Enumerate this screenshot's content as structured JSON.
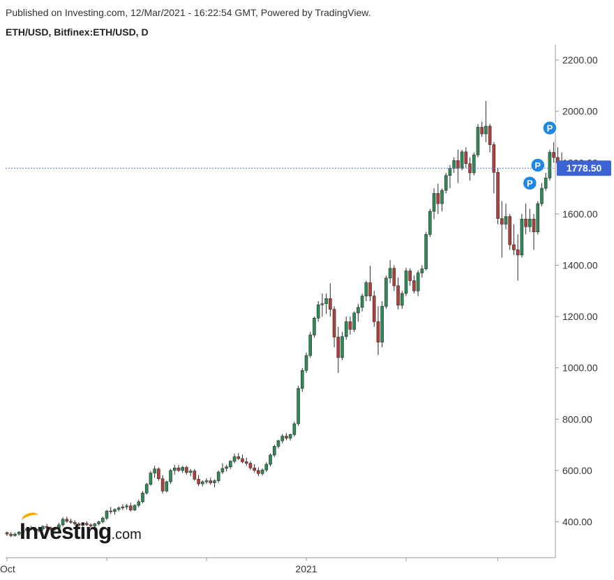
{
  "header": {
    "published": "Published on Investing.com, 12/Mar/2021 - 16:22:54 GMT, Powered by TradingView.",
    "symbol": "ETH/USD, Bitfinex:ETH/USD, D"
  },
  "logo": {
    "main": "Investing",
    "domain": ".com"
  },
  "colors": {
    "up": "#2e8b57",
    "down": "#b0403c",
    "price_line": "#5b74c9",
    "price_tag": "#3b63d6",
    "pattern_marker": "#1e88e5",
    "axis": "#999999"
  },
  "chart_data": {
    "type": "candlestick",
    "title": "ETH/USD, Bitfinex:ETH/USD, D",
    "ylim": [
      260,
      2260
    ],
    "y_ticks": [
      "2200.00",
      "2000.00",
      "1800.00",
      "1600.00",
      "1400.00",
      "1200.00",
      "1000.00",
      "800.00",
      "600.00",
      "400.00"
    ],
    "x_labels": [
      {
        "label": "Oct",
        "index": 0
      },
      {
        "label": "2021",
        "index": 75
      }
    ],
    "x_gridmarks": [
      0,
      25,
      50,
      75,
      100,
      123
    ],
    "last_price": "1778.50",
    "last_price_value": 1778.5,
    "pattern_markers": [
      {
        "label": "P",
        "index": 131,
        "value": 1720
      },
      {
        "label": "P",
        "index": 133,
        "value": 1790
      },
      {
        "label": "P",
        "index": 136,
        "value": 1935
      }
    ],
    "candles": [
      [
        358,
        362,
        345,
        352
      ],
      [
        352,
        360,
        340,
        346
      ],
      [
        346,
        358,
        342,
        352
      ],
      [
        352,
        364,
        346,
        360
      ],
      [
        360,
        372,
        352,
        366
      ],
      [
        366,
        380,
        360,
        374
      ],
      [
        374,
        384,
        366,
        370
      ],
      [
        370,
        378,
        358,
        366
      ],
      [
        366,
        376,
        360,
        372
      ],
      [
        372,
        386,
        366,
        382
      ],
      [
        382,
        392,
        372,
        376
      ],
      [
        376,
        382,
        362,
        370
      ],
      [
        370,
        380,
        364,
        376
      ],
      [
        376,
        396,
        370,
        388
      ],
      [
        388,
        418,
        382,
        410
      ],
      [
        410,
        420,
        396,
        402
      ],
      [
        402,
        412,
        392,
        398
      ],
      [
        398,
        406,
        386,
        392
      ],
      [
        392,
        398,
        380,
        386
      ],
      [
        386,
        398,
        380,
        394
      ],
      [
        394,
        402,
        384,
        388
      ],
      [
        388,
        394,
        376,
        384
      ],
      [
        384,
        396,
        378,
        392
      ],
      [
        392,
        404,
        386,
        400
      ],
      [
        400,
        420,
        394,
        414
      ],
      [
        414,
        446,
        406,
        442
      ],
      [
        442,
        458,
        430,
        440
      ],
      [
        440,
        452,
        428,
        448
      ],
      [
        448,
        460,
        440,
        454
      ],
      [
        454,
        468,
        446,
        458
      ],
      [
        458,
        470,
        448,
        462
      ],
      [
        462,
        474,
        440,
        446
      ],
      [
        446,
        468,
        442,
        464
      ],
      [
        464,
        486,
        456,
        478
      ],
      [
        478,
        520,
        472,
        512
      ],
      [
        512,
        552,
        506,
        546
      ],
      [
        546,
        598,
        540,
        590
      ],
      [
        590,
        618,
        572,
        606
      ],
      [
        606,
        612,
        560,
        568
      ],
      [
        568,
        582,
        510,
        520
      ],
      [
        520,
        560,
        514,
        556
      ],
      [
        556,
        606,
        548,
        600
      ],
      [
        600,
        622,
        584,
        610
      ],
      [
        610,
        622,
        594,
        600
      ],
      [
        600,
        618,
        590,
        612
      ],
      [
        612,
        618,
        584,
        592
      ],
      [
        592,
        606,
        578,
        598
      ],
      [
        598,
        606,
        560,
        566
      ],
      [
        566,
        582,
        540,
        548
      ],
      [
        548,
        562,
        538,
        556
      ],
      [
        556,
        570,
        548,
        560
      ],
      [
        560,
        572,
        544,
        552
      ],
      [
        552,
        566,
        534,
        560
      ],
      [
        560,
        600,
        552,
        594
      ],
      [
        594,
        628,
        586,
        608
      ],
      [
        608,
        622,
        596,
        614
      ],
      [
        614,
        640,
        606,
        636
      ],
      [
        636,
        666,
        628,
        654
      ],
      [
        654,
        668,
        640,
        646
      ],
      [
        646,
        662,
        628,
        634
      ],
      [
        634,
        650,
        618,
        628
      ],
      [
        628,
        636,
        602,
        610
      ],
      [
        610,
        624,
        592,
        600
      ],
      [
        600,
        612,
        578,
        588
      ],
      [
        588,
        608,
        580,
        602
      ],
      [
        602,
        632,
        594,
        624
      ],
      [
        624,
        666,
        616,
        660
      ],
      [
        660,
        700,
        652,
        694
      ],
      [
        694,
        720,
        686,
        716
      ],
      [
        716,
        742,
        706,
        734
      ],
      [
        734,
        746,
        718,
        726
      ],
      [
        726,
        744,
        716,
        740
      ],
      [
        740,
        790,
        732,
        782
      ],
      [
        782,
        930,
        774,
        920
      ],
      [
        920,
        1000,
        906,
        990
      ],
      [
        990,
        1060,
        980,
        1048
      ],
      [
        1048,
        1140,
        1040,
        1128
      ],
      [
        1128,
        1200,
        1118,
        1194
      ],
      [
        1194,
        1260,
        1180,
        1246
      ],
      [
        1246,
        1290,
        1200,
        1250
      ],
      [
        1250,
        1290,
        1210,
        1270
      ],
      [
        1270,
        1330,
        1200,
        1228
      ],
      [
        1228,
        1240,
        1080,
        1120
      ],
      [
        1120,
        1160,
        980,
        1040
      ],
      [
        1040,
        1140,
        1030,
        1122
      ],
      [
        1122,
        1200,
        1110,
        1180
      ],
      [
        1180,
        1200,
        1130,
        1150
      ],
      [
        1150,
        1220,
        1140,
        1214
      ],
      [
        1214,
        1250,
        1180,
        1236
      ],
      [
        1236,
        1290,
        1220,
        1280
      ],
      [
        1280,
        1340,
        1260,
        1332
      ],
      [
        1332,
        1398,
        1260,
        1280
      ],
      [
        1280,
        1300,
        1160,
        1180
      ],
      [
        1180,
        1240,
        1050,
        1100
      ],
      [
        1100,
        1260,
        1080,
        1240
      ],
      [
        1240,
        1360,
        1230,
        1350
      ],
      [
        1350,
        1420,
        1330,
        1388
      ],
      [
        1388,
        1400,
        1300,
        1320
      ],
      [
        1320,
        1352,
        1228,
        1244
      ],
      [
        1244,
        1300,
        1230,
        1290
      ],
      [
        1290,
        1390,
        1280,
        1378
      ],
      [
        1378,
        1388,
        1320,
        1340
      ],
      [
        1340,
        1360,
        1290,
        1300
      ],
      [
        1300,
        1380,
        1280,
        1370
      ],
      [
        1370,
        1400,
        1352,
        1386
      ],
      [
        1386,
        1530,
        1380,
        1520
      ],
      [
        1520,
        1620,
        1510,
        1610
      ],
      [
        1610,
        1700,
        1580,
        1680
      ],
      [
        1680,
        1718,
        1600,
        1640
      ],
      [
        1640,
        1700,
        1610,
        1692
      ],
      [
        1692,
        1760,
        1680,
        1750
      ],
      [
        1750,
        1790,
        1700,
        1778
      ],
      [
        1778,
        1820,
        1760,
        1808
      ],
      [
        1808,
        1850,
        1720,
        1778
      ],
      [
        1778,
        1850,
        1770,
        1842
      ],
      [
        1842,
        1860,
        1780,
        1796
      ],
      [
        1796,
        1820,
        1730,
        1760
      ],
      [
        1760,
        1840,
        1750,
        1830
      ],
      [
        1830,
        1950,
        1820,
        1938
      ],
      [
        1938,
        1960,
        1900,
        1912
      ],
      [
        1912,
        2040,
        1880,
        1942
      ],
      [
        1942,
        1950,
        1840,
        1870
      ],
      [
        1870,
        1880,
        1680,
        1762
      ],
      [
        1762,
        1780,
        1560,
        1582
      ],
      [
        1582,
        1650,
        1430,
        1560
      ],
      [
        1560,
        1640,
        1540,
        1590
      ],
      [
        1590,
        1600,
        1460,
        1480
      ],
      [
        1480,
        1560,
        1440,
        1460
      ],
      [
        1460,
        1520,
        1340,
        1440
      ],
      [
        1440,
        1600,
        1430,
        1580
      ],
      [
        1580,
        1640,
        1520,
        1550
      ],
      [
        1550,
        1620,
        1530,
        1580
      ],
      [
        1580,
        1600,
        1460,
        1530
      ],
      [
        1530,
        1650,
        1520,
        1640
      ],
      [
        1640,
        1720,
        1630,
        1700
      ],
      [
        1700,
        1760,
        1690,
        1740
      ],
      [
        1740,
        1850,
        1730,
        1840
      ],
      [
        1840,
        1880,
        1800,
        1820
      ],
      [
        1820,
        1860,
        1790,
        1800
      ],
      [
        1800,
        1840,
        1760,
        1778.5
      ]
    ]
  }
}
